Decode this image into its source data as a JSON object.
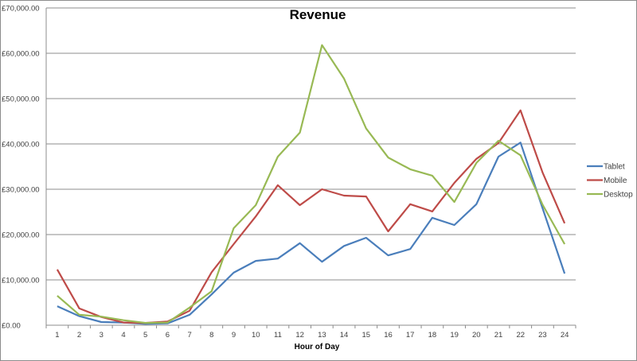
{
  "chart_data": {
    "type": "line",
    "title": "Revenue",
    "xlabel": "Hour of Day",
    "ylabel": "",
    "ylim": [
      0,
      70000
    ],
    "yticks": [
      "£0.00",
      "£10,000.00",
      "£20,000.00",
      "£30,000.00",
      "£40,000.00",
      "£50,000.00",
      "£60,000.00",
      "£70,000.00"
    ],
    "ytick_values": [
      0,
      10000,
      20000,
      30000,
      40000,
      50000,
      60000,
      70000
    ],
    "grid": true,
    "legend_position": "right",
    "x": [
      1,
      2,
      3,
      4,
      5,
      6,
      7,
      8,
      9,
      10,
      11,
      12,
      13,
      14,
      15,
      16,
      17,
      18,
      19,
      20,
      21,
      22,
      23,
      24
    ],
    "series": [
      {
        "name": "Tablet",
        "color": "#4a7ebb",
        "values": [
          4200,
          2000,
          700,
          600,
          300,
          400,
          2300,
          6800,
          11600,
          14200,
          14700,
          18100,
          14000,
          17500,
          19300,
          15400,
          16800,
          23700,
          22100,
          26700,
          37200,
          40300,
          25800,
          11400
        ]
      },
      {
        "name": "Mobile",
        "color": "#be4b48",
        "values": [
          12300,
          3700,
          1800,
          600,
          500,
          800,
          3200,
          11700,
          17900,
          24000,
          30900,
          26500,
          30000,
          28600,
          28400,
          20700,
          26700,
          25100,
          31400,
          36700,
          40200,
          47400,
          33700,
          22500
        ]
      },
      {
        "name": "Desktop",
        "color": "#98b954",
        "values": [
          6500,
          2300,
          1900,
          1100,
          500,
          600,
          3900,
          7500,
          21400,
          26500,
          37200,
          42500,
          61800,
          54400,
          43400,
          37000,
          34400,
          33000,
          27200,
          35800,
          40700,
          37500,
          26600,
          17900
        ]
      }
    ]
  }
}
